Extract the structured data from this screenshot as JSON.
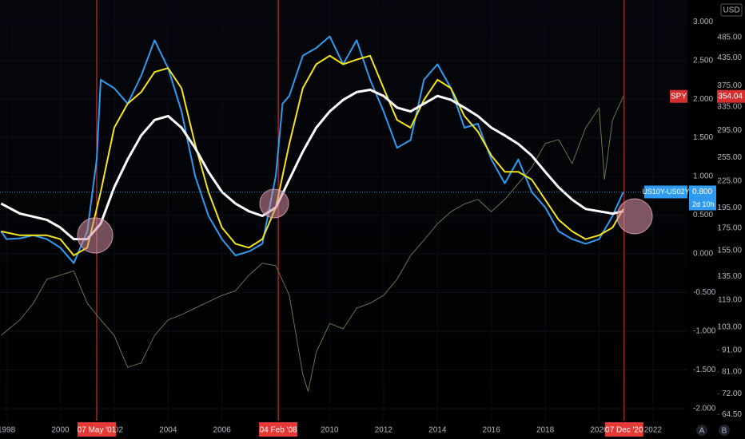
{
  "chart_data": {
    "type": "line",
    "y2scale": "log",
    "xlim": [
      1997.76,
      2023.28
    ],
    "xticks": [
      1998,
      2000,
      2002,
      2004,
      2006,
      2008,
      2010,
      2012,
      2014,
      2016,
      2018,
      2020,
      2022
    ],
    "ylim": [
      -2.155,
      3.28
    ],
    "yticks": [
      {
        "value": 3,
        "label": "3.000"
      },
      {
        "value": 2.5,
        "label": "2.500"
      },
      {
        "value": 2,
        "label": "2.000"
      },
      {
        "value": 1.5,
        "label": "1.500"
      },
      {
        "value": 1,
        "label": "1.000"
      },
      {
        "value": 0.5,
        "label": "0.500"
      },
      {
        "value": 0,
        "label": "0.000"
      },
      {
        "value": -0.5,
        "label": "-0.500"
      },
      {
        "value": -1,
        "label": "-1.000"
      },
      {
        "value": -1.5,
        "label": "-1.500"
      },
      {
        "value": -2,
        "label": "-2.000"
      }
    ],
    "y2lim": [
      62.4,
      593
    ],
    "y2ticks": [
      {
        "value": 485,
        "label": "485.00"
      },
      {
        "value": 435,
        "label": "435.00"
      },
      {
        "value": 375,
        "label": "375.00"
      },
      {
        "value": 335,
        "label": "335.00"
      },
      {
        "value": 295,
        "label": "295.00"
      },
      {
        "value": 255,
        "label": "255.00"
      },
      {
        "value": 225,
        "label": "225.00"
      },
      {
        "value": 195,
        "label": "195.00"
      },
      {
        "value": 175,
        "label": "175.00"
      },
      {
        "value": 155,
        "label": "155.00"
      },
      {
        "value": 135,
        "label": "135.00"
      },
      {
        "value": 119,
        "label": "119.00"
      },
      {
        "value": 103,
        "label": "103.00"
      },
      {
        "value": 91,
        "label": "91.00"
      },
      {
        "value": 81,
        "label": "81.00"
      },
      {
        "value": 72,
        "label": "72.00"
      },
      {
        "value": 64.5,
        "label": "64.50"
      }
    ],
    "currency": "USD",
    "countdown": "2d 10h",
    "scale_buttons": [
      "A",
      "B"
    ],
    "markers": [
      {
        "x": 2001.35,
        "label": "07 May '01"
      },
      {
        "x": 2008.09,
        "label": "04 Feb '08"
      },
      {
        "x": 2020.93,
        "label": "07 Dec '20"
      }
    ],
    "series": [
      {
        "name": "SPY",
        "axis": "y2",
        "color": "#66754f",
        "width": 1,
        "tag": {
          "value": 354.04,
          "label": "354.04"
        },
        "x": [
          1997.8,
          1998.5,
          1999.0,
          1999.5,
          2000.0,
          2000.5,
          2001.0,
          2001.5,
          2002.0,
          2002.5,
          2003.0,
          2003.5,
          2004.0,
          2004.5,
          2005.0,
          2006.0,
          2006.5,
          2007.0,
          2007.5,
          2008.0,
          2008.5,
          2009.0,
          2009.2,
          2009.5,
          2010.0,
          2010.5,
          2011.0,
          2011.5,
          2012.0,
          2012.5,
          2013.0,
          2013.5,
          2014.0,
          2014.5,
          2015.0,
          2015.5,
          2016.0,
          2016.5,
          2017.0,
          2017.5,
          2018.0,
          2018.5,
          2019.0,
          2019.5,
          2020.0,
          2020.2,
          2020.5,
          2020.9
        ],
        "values": [
          98.5,
          107,
          117,
          133,
          136,
          139,
          117,
          107,
          98.5,
          83,
          85,
          98.5,
          107,
          110,
          114,
          122,
          125,
          136,
          145,
          143,
          122,
          80,
          73,
          90,
          105,
          102,
          114,
          117,
          122,
          133,
          151,
          164,
          179,
          191,
          199,
          204,
          191,
          204,
          222,
          242,
          275,
          281,
          247,
          299,
          333,
          227,
          312,
          354.04
        ]
      },
      {
        "name": "US10Y-US02Y",
        "color": "#2f9bf0",
        "width": 2,
        "tag": {
          "value": 0.8,
          "label": "0.800"
        },
        "x": [
          1997.8,
          1998.0,
          1998.5,
          1999.0,
          1999.5,
          2000.0,
          2000.5,
          2001.0,
          2001.35,
          2001.5,
          2002.0,
          2002.5,
          2003.0,
          2003.5,
          2004.0,
          2004.5,
          2005.0,
          2005.5,
          2006.0,
          2006.5,
          2007.0,
          2007.5,
          2008.0,
          2008.25,
          2008.5,
          2009.0,
          2009.5,
          2010.0,
          2010.5,
          2011.0,
          2011.5,
          2012.0,
          2012.5,
          2013.0,
          2013.5,
          2014.0,
          2014.5,
          2015.0,
          2015.5,
          2016.0,
          2016.5,
          2017.0,
          2017.5,
          2018.0,
          2018.5,
          2019.0,
          2019.5,
          2020.0,
          2020.5,
          2020.9
        ],
        "values": [
          0.29,
          0.19,
          0.2,
          0.24,
          0.19,
          0.08,
          -0.12,
          0.29,
          1.22,
          2.25,
          2.14,
          1.94,
          2.3,
          2.76,
          2.4,
          1.84,
          1.01,
          0.49,
          0.19,
          -0.02,
          0.03,
          0.13,
          1.01,
          1.94,
          2.04,
          2.56,
          2.66,
          2.81,
          2.45,
          2.76,
          2.25,
          1.84,
          1.37,
          1.47,
          2.25,
          2.45,
          2.14,
          1.63,
          1.68,
          1.22,
          0.91,
          1.22,
          0.8,
          0.6,
          0.29,
          0.19,
          0.13,
          0.19,
          0.49,
          0.8
        ]
      },
      {
        "color": "#f5e51b",
        "width": 2,
        "x": [
          1997.8,
          1998.5,
          1999.5,
          2000.0,
          2000.5,
          2001.0,
          2001.5,
          2002.0,
          2002.5,
          2003.0,
          2003.5,
          2004.0,
          2004.5,
          2005.0,
          2005.5,
          2006.0,
          2006.5,
          2007.0,
          2007.5,
          2008.0,
          2008.5,
          2009.0,
          2009.5,
          2010.0,
          2010.5,
          2011.0,
          2011.5,
          2012.0,
          2012.5,
          2013.0,
          2013.5,
          2014.0,
          2014.5,
          2015.0,
          2015.5,
          2016.0,
          2016.5,
          2017.0,
          2017.5,
          2018.0,
          2018.5,
          2019.0,
          2019.5,
          2020.0,
          2020.5,
          2020.9
        ],
        "values": [
          0.29,
          0.24,
          0.24,
          0.19,
          -0.02,
          0.08,
          0.8,
          1.63,
          1.94,
          2.09,
          2.35,
          2.4,
          2.14,
          1.42,
          0.8,
          0.34,
          0.13,
          0.08,
          0.19,
          0.6,
          1.42,
          2.14,
          2.45,
          2.56,
          2.45,
          2.51,
          2.56,
          2.14,
          1.73,
          1.63,
          1.99,
          2.25,
          2.14,
          1.78,
          1.58,
          1.27,
          1.06,
          1.06,
          0.96,
          0.7,
          0.44,
          0.29,
          0.19,
          0.24,
          0.34,
          0.58
        ]
      },
      {
        "color": "#ffffff",
        "width": 3,
        "x": [
          1997.8,
          1998.5,
          1999.5,
          2000.0,
          2000.5,
          2001.0,
          2001.5,
          2002.0,
          2002.5,
          2003.0,
          2003.5,
          2004.0,
          2004.5,
          2005.0,
          2005.5,
          2006.0,
          2006.5,
          2007.0,
          2007.5,
          2008.0,
          2008.5,
          2009.0,
          2009.5,
          2010.0,
          2010.5,
          2011.0,
          2011.5,
          2012.0,
          2012.5,
          2013.0,
          2013.5,
          2014.0,
          2014.5,
          2015.0,
          2015.5,
          2016.0,
          2016.5,
          2017.0,
          2017.5,
          2018.0,
          2018.5,
          2019.0,
          2019.5,
          2020.0,
          2020.5,
          2020.9
        ],
        "values": [
          0.65,
          0.52,
          0.44,
          0.34,
          0.19,
          0.19,
          0.39,
          0.86,
          1.22,
          1.53,
          1.73,
          1.78,
          1.63,
          1.37,
          1.06,
          0.8,
          0.65,
          0.55,
          0.49,
          0.6,
          0.96,
          1.32,
          1.63,
          1.84,
          1.99,
          2.09,
          2.12,
          2.04,
          1.89,
          1.84,
          1.94,
          2.04,
          1.99,
          1.89,
          1.78,
          1.63,
          1.53,
          1.42,
          1.27,
          1.06,
          0.86,
          0.7,
          0.58,
          0.55,
          0.52,
          0.55
        ]
      }
    ]
  }
}
